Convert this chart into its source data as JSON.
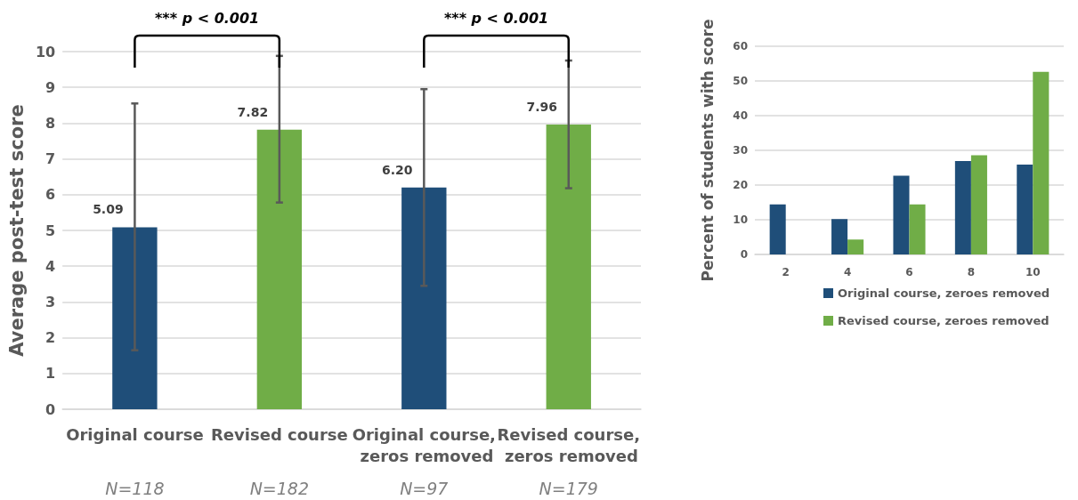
{
  "chart_data": [
    {
      "type": "bar",
      "ylabel": "Average post-test score",
      "categories": [
        "Original course",
        "Revised course",
        "Original course, zeros removed",
        "Revised course, zeros removed"
      ],
      "values": [
        5.09,
        7.82,
        6.2,
        7.96
      ],
      "colors": [
        "#1f4e79",
        "#70ad47",
        "#1f4e79",
        "#70ad47"
      ],
      "value_labels": [
        "5.09",
        "7.82",
        "6.20",
        "7.96"
      ],
      "errors": [
        [
          1.65,
          8.55
        ],
        [
          5.78,
          9.88
        ],
        [
          3.45,
          8.95
        ],
        [
          6.18,
          9.75
        ]
      ],
      "ylim": [
        0,
        10
      ],
      "yticks": [
        0,
        1,
        2,
        3,
        4,
        5,
        6,
        7,
        8,
        9,
        10
      ],
      "grid": "y",
      "legend": false,
      "annotations": [
        "*** p < 0.001",
        "*** p < 0.001",
        "N=118",
        "N=182",
        "N=97",
        "N=179"
      ]
    },
    {
      "type": "bar",
      "ylabel": "Percent of students with score",
      "categories": [
        "2",
        "4",
        "6",
        "8",
        "10"
      ],
      "ylim": [
        0,
        60
      ],
      "yticks": [
        0,
        10,
        20,
        30,
        40,
        50,
        60
      ],
      "grid": "y",
      "legend": "bottom",
      "series": [
        {
          "name": "Original course, zeroes removed",
          "color": "#1f4e79",
          "values": [
            14.4,
            10.2,
            22.7,
            26.9,
            25.9
          ]
        },
        {
          "name": "Revised course, zeroes removed",
          "color": "#70ad47",
          "values": [
            0,
            4.3,
            14.4,
            28.6,
            52.6
          ]
        }
      ]
    }
  ]
}
